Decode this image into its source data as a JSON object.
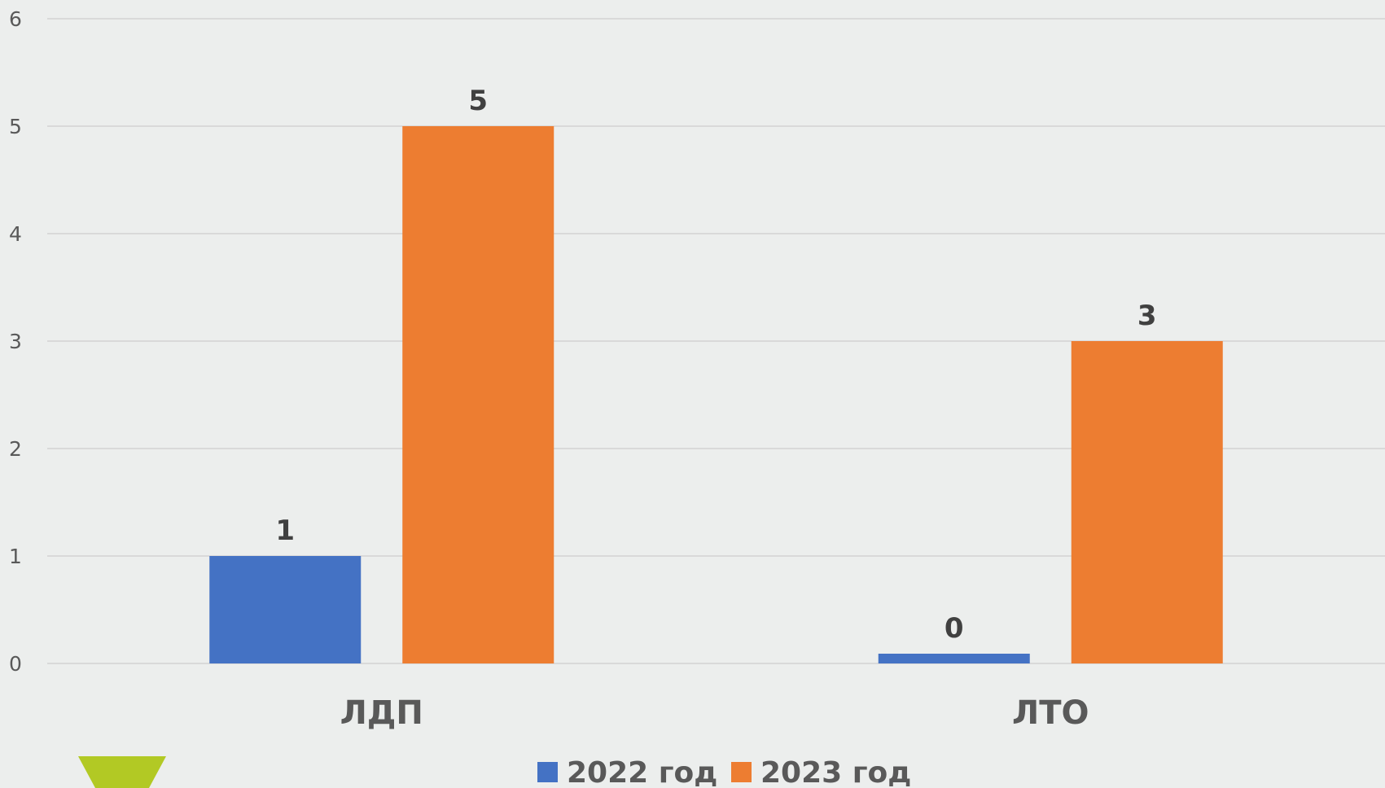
{
  "chart_data": {
    "type": "bar",
    "categories": [
      "ЛДП",
      "ЛТО"
    ],
    "series": [
      {
        "name": "2022 год",
        "values": [
          1,
          0
        ],
        "color": "#4472c4"
      },
      {
        "name": "2023 год",
        "values": [
          5,
          3
        ],
        "color": "#ed7d31"
      }
    ],
    "ylim": [
      0,
      6
    ],
    "yticks": [
      0,
      1,
      2,
      3,
      4,
      5,
      6
    ],
    "grid": true,
    "legend": "bottom",
    "data_labels": [
      [
        "1",
        "0"
      ],
      [
        "5",
        "3"
      ]
    ]
  },
  "decoration": {
    "corner_shape": "green-trapezoid",
    "color": "#b2c924"
  },
  "colors": {
    "background": "#eceeed",
    "grid": "#d9d9d9"
  }
}
